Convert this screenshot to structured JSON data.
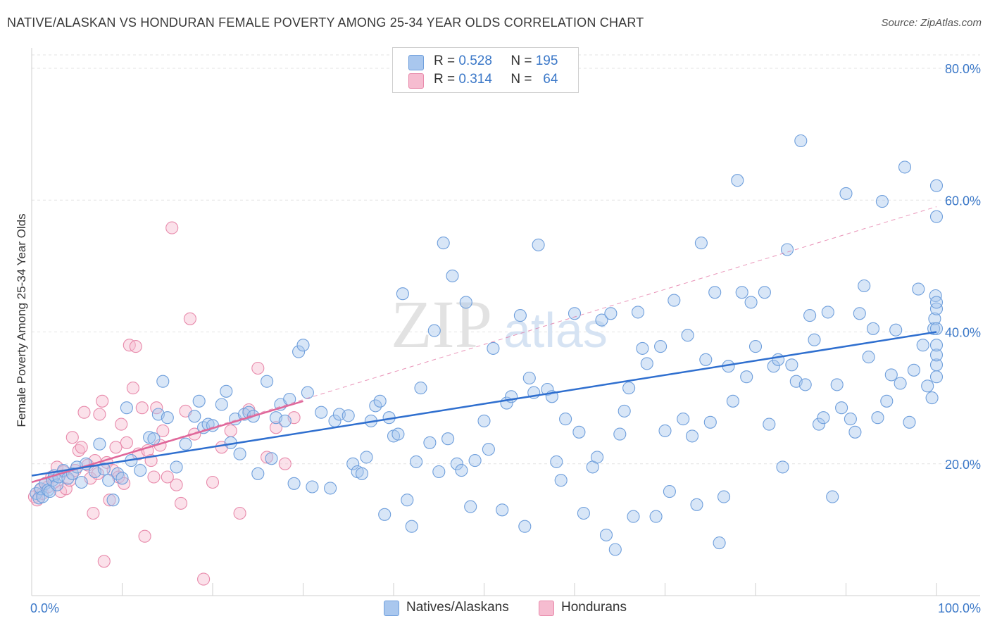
{
  "title": "NATIVE/ALASKAN VS HONDURAN FEMALE POVERTY AMONG 25-34 YEAR OLDS CORRELATION CHART",
  "source": "Source: ZipAtlas.com",
  "watermark": "ZIPatlas",
  "legend": {
    "rows": [
      {
        "r_label": "R =",
        "r_value": "0.528",
        "n_label": "N =",
        "n_value": "195"
      },
      {
        "r_label": "R =",
        "r_value": "0.314",
        "n_label": "N =",
        "n_value": "64"
      }
    ]
  },
  "bottom_legend": [
    "Natives/Alaskans",
    "Hondurans"
  ],
  "colors": {
    "blue_fill": "#a9c7ee",
    "blue_stroke": "#6f9fdc",
    "blue_line": "#2f6fcf",
    "pink_fill": "#f6bcd0",
    "pink_stroke": "#e88aab",
    "pink_line": "#e0679a",
    "axis_label": "#3b78c8"
  },
  "chart_data": {
    "type": "scatter",
    "title": "NATIVE/ALASKAN VS HONDURAN FEMALE POVERTY AMONG 25-34 YEAR OLDS CORRELATION CHART",
    "xlabel": "",
    "ylabel": "Female Poverty Among 25-34 Year Olds",
    "xlim": [
      0,
      100
    ],
    "ylim": [
      0,
      85
    ],
    "x_tick_labels": [
      "0.0%",
      "100.0%"
    ],
    "y_ticks": [
      20,
      40,
      60,
      80
    ],
    "y_tick_labels": [
      "20.0%",
      "40.0%",
      "60.0%",
      "80.0%"
    ],
    "grid": true,
    "legend_position": "top-center",
    "series": [
      {
        "name": "Natives/Alaskans",
        "trend": {
          "x": [
            0,
            100
          ],
          "y": [
            18.2,
            40.0
          ]
        },
        "points": [
          [
            0.5,
            15.5
          ],
          [
            0.8,
            14.8
          ],
          [
            1.0,
            16.2
          ],
          [
            1.2,
            15.0
          ],
          [
            1.5,
            17.0
          ],
          [
            1.8,
            16.0
          ],
          [
            2.0,
            15.8
          ],
          [
            2.3,
            17.5
          ],
          [
            2.5,
            18.2
          ],
          [
            2.8,
            16.8
          ],
          [
            3.0,
            18.0
          ],
          [
            3.5,
            19.0
          ],
          [
            4.0,
            17.8
          ],
          [
            4.5,
            18.5
          ],
          [
            5.0,
            19.5
          ],
          [
            5.5,
            17.2
          ],
          [
            6.0,
            20.0
          ],
          [
            7.0,
            18.8
          ],
          [
            7.5,
            23.0
          ],
          [
            8.0,
            19.2
          ],
          [
            8.5,
            17.5
          ],
          [
            9.0,
            14.5
          ],
          [
            9.5,
            18.5
          ],
          [
            10.0,
            17.8
          ],
          [
            10.5,
            28.5
          ],
          [
            11.0,
            20.5
          ],
          [
            12.0,
            19.0
          ],
          [
            13.0,
            24.0
          ],
          [
            13.5,
            23.8
          ],
          [
            14.0,
            27.5
          ],
          [
            14.5,
            32.5
          ],
          [
            15.0,
            27.0
          ],
          [
            16.0,
            19.5
          ],
          [
            17.0,
            23.0
          ],
          [
            18.0,
            27.2
          ],
          [
            18.5,
            29.5
          ],
          [
            19.0,
            25.5
          ],
          [
            19.5,
            26.0
          ],
          [
            20.0,
            25.8
          ],
          [
            21.0,
            29.0
          ],
          [
            21.5,
            31.0
          ],
          [
            22.0,
            23.2
          ],
          [
            22.5,
            26.8
          ],
          [
            23.0,
            21.5
          ],
          [
            23.5,
            27.5
          ],
          [
            24.0,
            27.8
          ],
          [
            24.5,
            27.2
          ],
          [
            25.0,
            18.5
          ],
          [
            26.0,
            32.5
          ],
          [
            26.5,
            20.8
          ],
          [
            27.0,
            27.0
          ],
          [
            27.5,
            29.0
          ],
          [
            28.0,
            26.5
          ],
          [
            28.5,
            29.8
          ],
          [
            29.0,
            17.0
          ],
          [
            29.5,
            37.0
          ],
          [
            30.0,
            38.0
          ],
          [
            30.5,
            30.8
          ],
          [
            31.0,
            16.5
          ],
          [
            32.0,
            27.8
          ],
          [
            33.0,
            16.3
          ],
          [
            33.5,
            26.5
          ],
          [
            34.0,
            27.5
          ],
          [
            35.0,
            27.3
          ],
          [
            35.5,
            20.0
          ],
          [
            36.0,
            18.8
          ],
          [
            36.5,
            18.5
          ],
          [
            37.0,
            21.0
          ],
          [
            37.5,
            26.5
          ],
          [
            38.0,
            28.8
          ],
          [
            38.5,
            29.5
          ],
          [
            39.0,
            12.3
          ],
          [
            39.5,
            27.0
          ],
          [
            40.0,
            24.2
          ],
          [
            40.5,
            24.5
          ],
          [
            41.0,
            45.8
          ],
          [
            41.5,
            14.5
          ],
          [
            42.0,
            10.5
          ],
          [
            42.5,
            20.3
          ],
          [
            43.0,
            31.5
          ],
          [
            44.0,
            23.2
          ],
          [
            44.5,
            40.2
          ],
          [
            45.0,
            18.8
          ],
          [
            45.5,
            53.5
          ],
          [
            46.0,
            23.8
          ],
          [
            46.5,
            48.5
          ],
          [
            47.0,
            20.0
          ],
          [
            47.5,
            19.0
          ],
          [
            48.0,
            44.5
          ],
          [
            48.5,
            13.5
          ],
          [
            49.0,
            20.5
          ],
          [
            50.0,
            26.5
          ],
          [
            50.5,
            22.2
          ],
          [
            51.0,
            37.5
          ],
          [
            52.0,
            13.0
          ],
          [
            52.5,
            29.2
          ],
          [
            53.0,
            30.2
          ],
          [
            54.0,
            42.5
          ],
          [
            54.5,
            10.5
          ],
          [
            55.0,
            33.0
          ],
          [
            55.5,
            30.8
          ],
          [
            56.0,
            53.2
          ],
          [
            57.0,
            31.3
          ],
          [
            57.5,
            30.2
          ],
          [
            58.0,
            20.3
          ],
          [
            58.5,
            17.5
          ],
          [
            59.0,
            26.8
          ],
          [
            60.0,
            42.8
          ],
          [
            60.5,
            24.8
          ],
          [
            61.0,
            12.5
          ],
          [
            62.0,
            19.5
          ],
          [
            62.5,
            21.0
          ],
          [
            63.0,
            41.8
          ],
          [
            63.5,
            9.2
          ],
          [
            64.0,
            42.8
          ],
          [
            64.5,
            7.0
          ],
          [
            65.0,
            24.5
          ],
          [
            65.5,
            28.0
          ],
          [
            66.0,
            31.5
          ],
          [
            66.5,
            12.0
          ],
          [
            67.0,
            43.0
          ],
          [
            67.5,
            37.5
          ],
          [
            68.0,
            35.2
          ],
          [
            69.0,
            12.0
          ],
          [
            69.5,
            37.8
          ],
          [
            70.0,
            25.0
          ],
          [
            70.5,
            15.8
          ],
          [
            71.0,
            44.8
          ],
          [
            72.0,
            26.8
          ],
          [
            72.5,
            39.5
          ],
          [
            73.0,
            24.2
          ],
          [
            73.5,
            13.8
          ],
          [
            74.0,
            53.5
          ],
          [
            74.5,
            35.8
          ],
          [
            75.0,
            26.3
          ],
          [
            75.5,
            46.0
          ],
          [
            76.0,
            8.0
          ],
          [
            76.5,
            15.0
          ],
          [
            77.0,
            34.8
          ],
          [
            77.5,
            29.5
          ],
          [
            78.0,
            63.0
          ],
          [
            78.5,
            46.0
          ],
          [
            79.0,
            33.2
          ],
          [
            79.5,
            44.5
          ],
          [
            80.0,
            37.8
          ],
          [
            81.0,
            46.0
          ],
          [
            81.5,
            26.0
          ],
          [
            82.0,
            34.8
          ],
          [
            82.5,
            35.8
          ],
          [
            83.0,
            19.5
          ],
          [
            83.5,
            52.5
          ],
          [
            84.0,
            35.0
          ],
          [
            84.5,
            32.5
          ],
          [
            85.0,
            69.0
          ],
          [
            85.5,
            32.0
          ],
          [
            86.0,
            42.5
          ],
          [
            86.5,
            38.8
          ],
          [
            87.0,
            26.0
          ],
          [
            87.5,
            27.0
          ],
          [
            88.0,
            43.0
          ],
          [
            88.5,
            15.0
          ],
          [
            89.0,
            32.0
          ],
          [
            89.5,
            28.5
          ],
          [
            90.0,
            61.0
          ],
          [
            90.5,
            26.8
          ],
          [
            91.0,
            24.8
          ],
          [
            91.5,
            42.8
          ],
          [
            92.0,
            47.0
          ],
          [
            92.5,
            36.2
          ],
          [
            93.0,
            40.5
          ],
          [
            93.5,
            27.0
          ],
          [
            94.0,
            59.8
          ],
          [
            94.5,
            29.5
          ],
          [
            95.0,
            33.5
          ],
          [
            95.5,
            40.3
          ],
          [
            96.0,
            32.2
          ],
          [
            96.5,
            65.0
          ],
          [
            97.0,
            26.3
          ],
          [
            97.5,
            34.2
          ],
          [
            98.0,
            46.5
          ],
          [
            98.5,
            38.0
          ],
          [
            99.0,
            31.8
          ],
          [
            99.5,
            30.0
          ],
          [
            99.7,
            40.5
          ],
          [
            99.8,
            42.0
          ],
          [
            99.9,
            45.5
          ],
          [
            100.0,
            33.2
          ],
          [
            100.0,
            62.2
          ],
          [
            100.0,
            35.0
          ],
          [
            100.0,
            43.5
          ],
          [
            100.0,
            40.5
          ],
          [
            100.0,
            36.5
          ],
          [
            100.0,
            57.5
          ],
          [
            100.0,
            44.5
          ],
          [
            100.0,
            38.0
          ]
        ]
      },
      {
        "name": "Hondurans",
        "trend": {
          "x": [
            0,
            30
          ],
          "y": [
            17.2,
            29.5
          ]
        },
        "trend_extended": {
          "x": [
            0,
            100
          ],
          "y": [
            17.2,
            59.0
          ]
        },
        "points": [
          [
            0.3,
            15.0
          ],
          [
            0.6,
            14.5
          ],
          [
            0.9,
            16.0
          ],
          [
            1.2,
            15.5
          ],
          [
            1.5,
            17.0
          ],
          [
            1.8,
            16.5
          ],
          [
            2.2,
            18.0
          ],
          [
            2.5,
            17.2
          ],
          [
            2.8,
            19.5
          ],
          [
            3.2,
            15.8
          ],
          [
            3.5,
            18.8
          ],
          [
            3.8,
            16.2
          ],
          [
            4.2,
            17.5
          ],
          [
            4.5,
            24.0
          ],
          [
            4.8,
            19.0
          ],
          [
            5.2,
            22.0
          ],
          [
            5.5,
            22.5
          ],
          [
            5.8,
            27.8
          ],
          [
            6.2,
            19.8
          ],
          [
            6.5,
            17.8
          ],
          [
            6.8,
            12.5
          ],
          [
            7.0,
            20.5
          ],
          [
            7.3,
            18.5
          ],
          [
            7.5,
            27.5
          ],
          [
            7.8,
            29.5
          ],
          [
            8.0,
            5.2
          ],
          [
            8.3,
            20.2
          ],
          [
            8.6,
            14.5
          ],
          [
            9.0,
            19.0
          ],
          [
            9.3,
            22.5
          ],
          [
            9.6,
            18.0
          ],
          [
            9.9,
            26.0
          ],
          [
            10.2,
            17.0
          ],
          [
            10.5,
            23.2
          ],
          [
            10.8,
            38.0
          ],
          [
            11.2,
            31.5
          ],
          [
            11.5,
            37.8
          ],
          [
            11.8,
            21.5
          ],
          [
            12.2,
            28.5
          ],
          [
            12.5,
            9.0
          ],
          [
            12.8,
            22.0
          ],
          [
            13.2,
            20.5
          ],
          [
            13.5,
            18.0
          ],
          [
            13.8,
            28.5
          ],
          [
            14.2,
            22.8
          ],
          [
            14.5,
            25.0
          ],
          [
            15.0,
            18.0
          ],
          [
            15.5,
            55.8
          ],
          [
            16.0,
            16.8
          ],
          [
            16.5,
            14.0
          ],
          [
            17.0,
            28.0
          ],
          [
            17.5,
            42.0
          ],
          [
            18.0,
            24.5
          ],
          [
            19.0,
            2.5
          ],
          [
            20.0,
            17.2
          ],
          [
            21.0,
            22.5
          ],
          [
            22.0,
            25.0
          ],
          [
            23.0,
            12.5
          ],
          [
            24.0,
            28.2
          ],
          [
            25.0,
            34.5
          ],
          [
            26.0,
            21.0
          ],
          [
            27.0,
            25.5
          ],
          [
            28.0,
            20.0
          ],
          [
            29.0,
            27.0
          ]
        ]
      }
    ]
  }
}
